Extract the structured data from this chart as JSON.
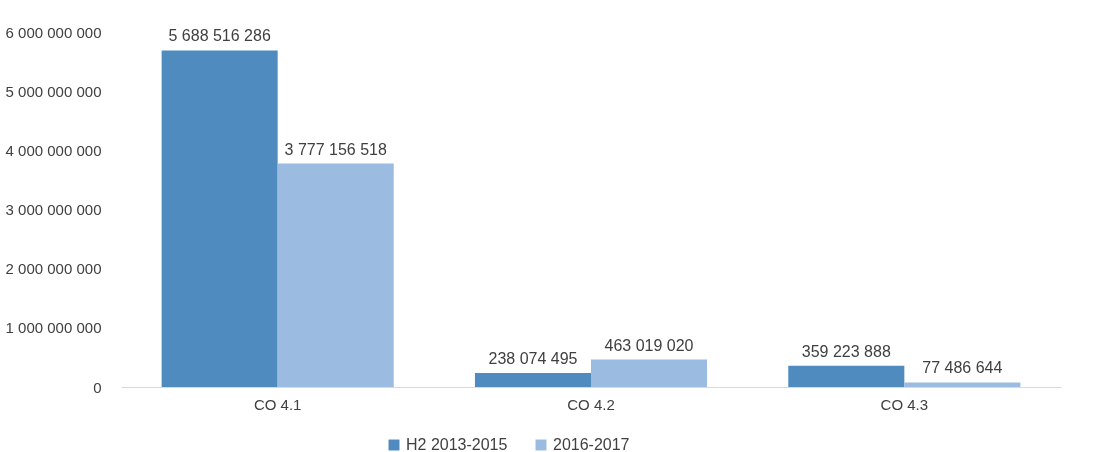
{
  "chart_data": {
    "type": "bar",
    "categories": [
      "CO 4.1",
      "CO 4.2",
      "CO 4.3"
    ],
    "series": [
      {
        "name": "H2 2013-2015",
        "color": "#4f8bbf",
        "values": [
          5688516286,
          238074495,
          359223888
        ],
        "value_labels": [
          "5 688 516 286",
          "238 074 495",
          "359 223 888"
        ]
      },
      {
        "name": "2016-2017",
        "color": "#9bbbe0",
        "values": [
          3777156518,
          463019020,
          77486644
        ],
        "value_labels": [
          "3 777 156 518",
          "463 019 020",
          "77 486 644"
        ]
      }
    ],
    "ylim": [
      0,
      6000000000
    ],
    "yticks": [
      0,
      {
        "value": 1000000000,
        "label": "1 000 000 000"
      },
      {
        "value": 2000000000,
        "label": "2 000 000 000"
      },
      {
        "value": 3000000000,
        "label": "3 000 000 000"
      },
      {
        "value": 4000000000,
        "label": "4 000 000 000"
      },
      {
        "value": 5000000000,
        "label": "5 000 000 000"
      },
      {
        "value": 6000000000,
        "label": "6 000 000 000"
      }
    ],
    "grid": false,
    "legend": "bottom"
  }
}
